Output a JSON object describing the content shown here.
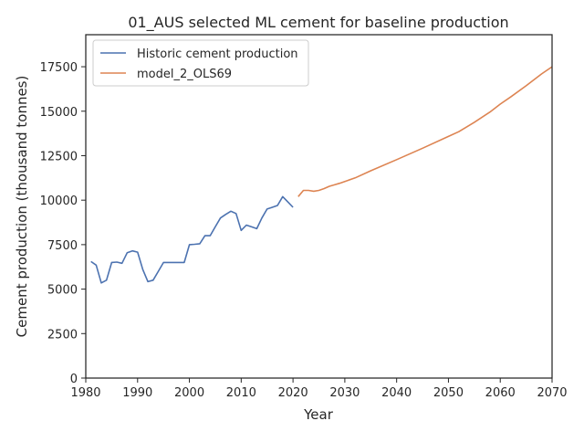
{
  "chart_data": {
    "type": "line",
    "title": "01_AUS selected ML cement for baseline production",
    "xlabel": "Year",
    "ylabel": "Cement production (thousand tonnes)",
    "xlim": [
      1980,
      2070
    ],
    "ylim": [
      0,
      19300
    ],
    "xticks": [
      1980,
      1990,
      2000,
      2010,
      2020,
      2030,
      2040,
      2050,
      2060,
      2070
    ],
    "yticks": [
      0,
      2500,
      5000,
      7500,
      10000,
      12500,
      15000,
      17500
    ],
    "grid": false,
    "legend_position": "top-left",
    "series": [
      {
        "name": "Historic cement production",
        "color": "#4c72b0",
        "x": [
          1981,
          1982,
          1983,
          1984,
          1985,
          1986,
          1987,
          1988,
          1989,
          1990,
          1991,
          1992,
          1993,
          1994,
          1995,
          1996,
          1997,
          1998,
          1999,
          2000,
          2001,
          2002,
          2003,
          2004,
          2005,
          2006,
          2007,
          2008,
          2009,
          2010,
          2011,
          2012,
          2013,
          2014,
          2015,
          2016,
          2017,
          2018,
          2019,
          2020
        ],
        "y": [
          6550,
          6350,
          5350,
          5500,
          6500,
          6520,
          6450,
          7050,
          7150,
          7080,
          6100,
          5420,
          5500,
          6000,
          6500,
          6500,
          6500,
          6500,
          6500,
          7500,
          7520,
          7550,
          8000,
          8000,
          8500,
          9000,
          9200,
          9380,
          9250,
          8300,
          8600,
          8500,
          8400,
          9000,
          9500,
          9600,
          9700,
          10200,
          9900,
          9600
        ]
      },
      {
        "name": "model_2_OLS69",
        "color": "#dd8452",
        "x": [
          2021,
          2022,
          2023,
          2024,
          2025,
          2026,
          2027,
          2028,
          2029,
          2030,
          2032,
          2035,
          2040,
          2045,
          2050,
          2052,
          2055,
          2058,
          2060,
          2062,
          2065,
          2068,
          2070
        ],
        "y": [
          10200,
          10550,
          10550,
          10500,
          10550,
          10650,
          10780,
          10860,
          10950,
          11050,
          11250,
          11650,
          12280,
          12920,
          13580,
          13850,
          14380,
          14950,
          15400,
          15800,
          16430,
          17100,
          17500
        ]
      }
    ]
  }
}
